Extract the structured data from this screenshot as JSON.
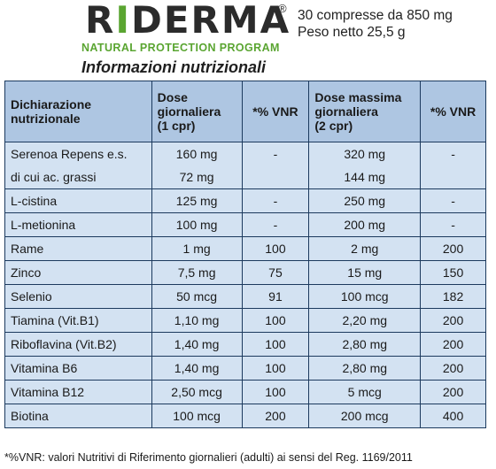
{
  "brand": {
    "name_part1": "R",
    "name_i": "I",
    "name_part2": "DERMA",
    "registered": "®",
    "tagline": "NATURAL PROTECTION PROGRAM"
  },
  "package": {
    "line1": "30 compresse da 850 mg",
    "line2": "Peso netto 25,5 g"
  },
  "title": "Informazioni nutrizionali",
  "table": {
    "headers": {
      "col1": "Dichiarazione nutrizionale",
      "col2_l1": "Dose",
      "col2_l2": "giornaliera",
      "col2_l3": "(1 cpr)",
      "col3": "*% VNR",
      "col4_l1": "Dose  massima",
      "col4_l2": "giornaliera",
      "col4_l3": "(2 cpr)",
      "col5": "*% VNR"
    },
    "rows": [
      {
        "name": "Serenoa Repens e.s.",
        "dose1": "160 mg",
        "vnr1": "-",
        "dose2": "320 mg",
        "vnr2": "-"
      },
      {
        "name": "di cui ac. grassi",
        "dose1": "72 mg",
        "vnr1": "",
        "dose2": "144 mg",
        "vnr2": ""
      },
      {
        "name": "L-cistina",
        "dose1": "125 mg",
        "vnr1": "-",
        "dose2": "250 mg",
        "vnr2": "-"
      },
      {
        "name": "L-metionina",
        "dose1": "100 mg",
        "vnr1": "-",
        "dose2": "200 mg",
        "vnr2": "-"
      },
      {
        "name": "Rame",
        "dose1": "1 mg",
        "vnr1": "100",
        "dose2": "2 mg",
        "vnr2": "200"
      },
      {
        "name": "Zinco",
        "dose1": "7,5 mg",
        "vnr1": "75",
        "dose2": "15 mg",
        "vnr2": "150"
      },
      {
        "name": "Selenio",
        "dose1": "50 mcg",
        "vnr1": "91",
        "dose2": "100 mcg",
        "vnr2": "182"
      },
      {
        "name": "Tiamina (Vit.B1)",
        "dose1": "1,10 mg",
        "vnr1": "100",
        "dose2": "2,20 mg",
        "vnr2": "200"
      },
      {
        "name": "Riboflavina (Vit.B2)",
        "dose1": "1,40 mg",
        "vnr1": "100",
        "dose2": "2,80 mg",
        "vnr2": "200"
      },
      {
        "name": "Vitamina B6",
        "dose1": "1,40 mg",
        "vnr1": "100",
        "dose2": "2,80 mg",
        "vnr2": "200"
      },
      {
        "name": "Vitamina B12",
        "dose1": "2,50 mcg",
        "vnr1": "100",
        "dose2": "5 mcg",
        "vnr2": "200"
      },
      {
        "name": "Biotina",
        "dose1": "100 mcg",
        "vnr1": "200",
        "dose2": "200 mcg",
        "vnr2": "400"
      }
    ]
  },
  "footnote": "*%VNR: valori Nutritivi di Riferimento giornalieri (adulti) ai sensi del Reg. 1169/2011",
  "colors": {
    "header_bg": "#aec6e2",
    "cell_bg": "#d3e2f2",
    "border": "#1c3a5e",
    "brand_green": "#5aa531"
  }
}
